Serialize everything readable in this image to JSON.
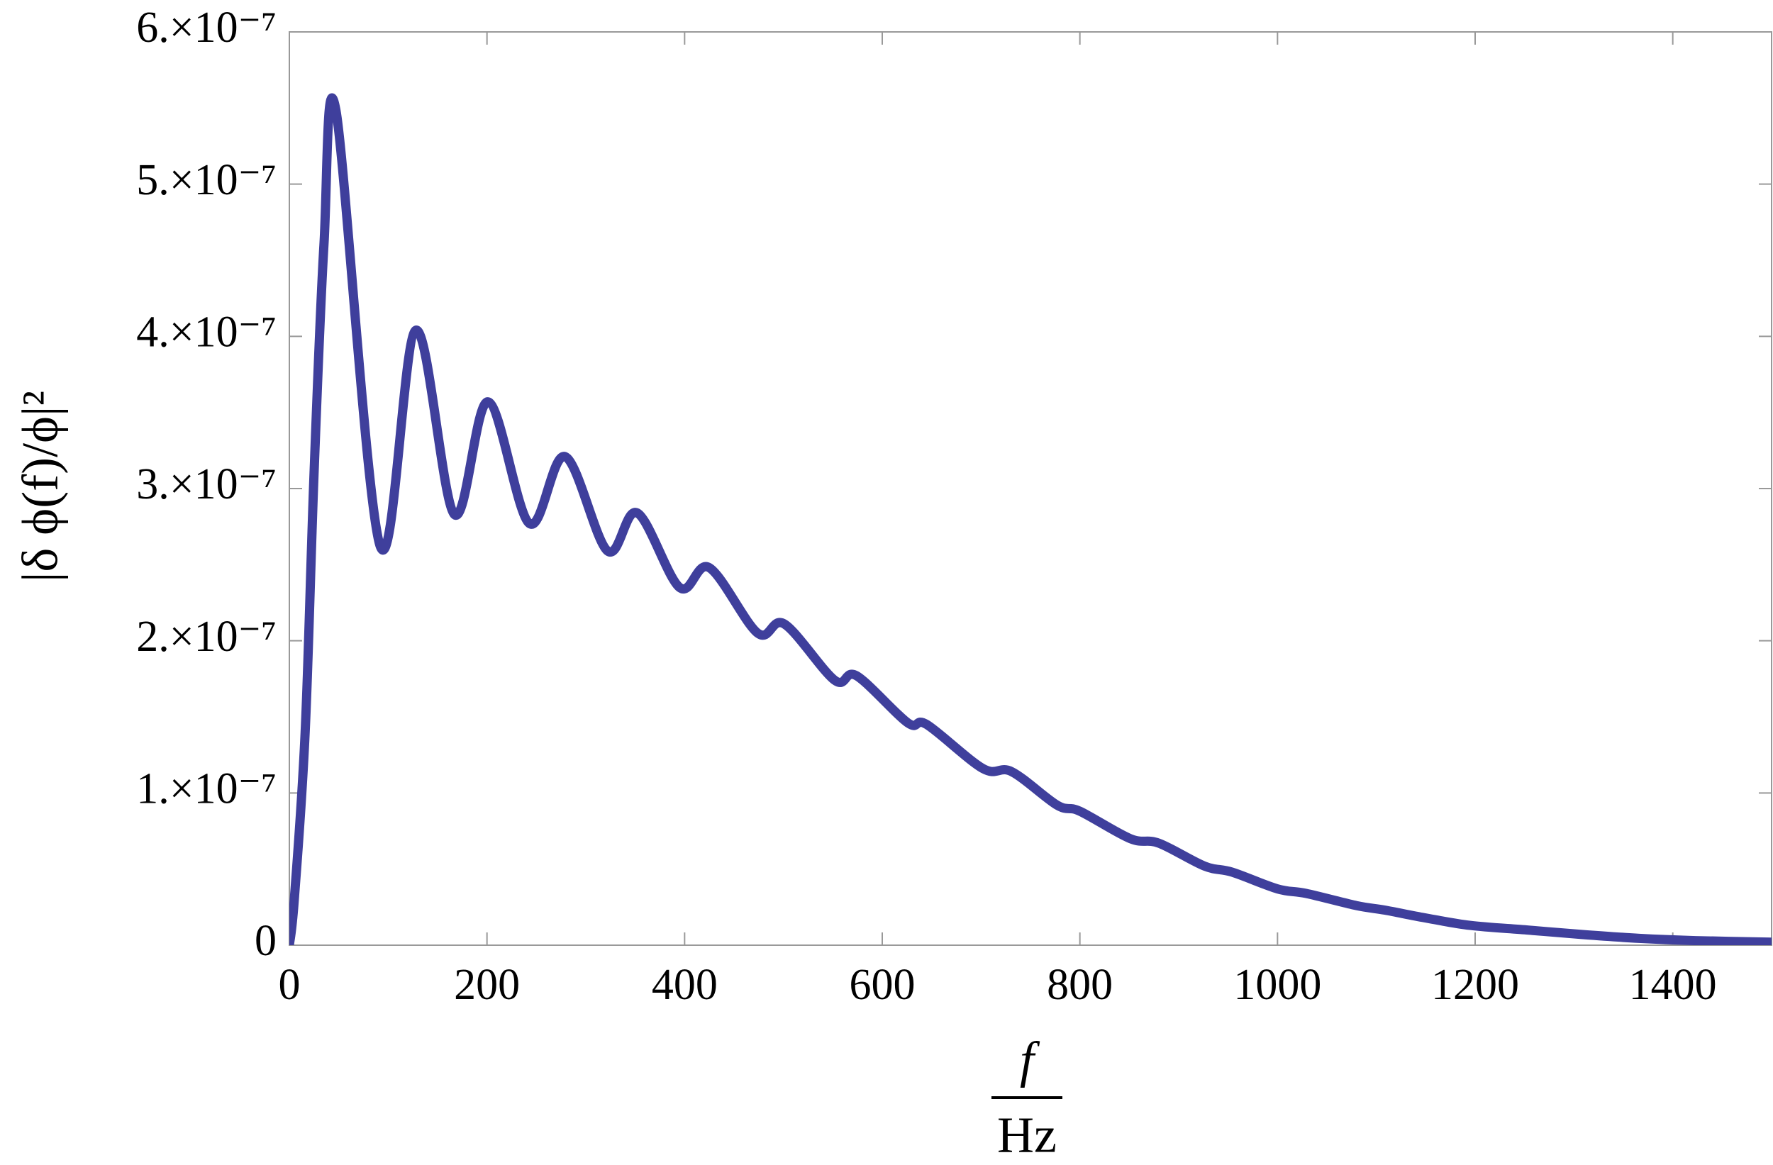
{
  "chart_data": {
    "type": "line",
    "ylabel": "|δ ϕ(f)/ϕ|²",
    "xlabel": {
      "numerator": "f",
      "denominator": "Hz"
    },
    "xlim": [
      0,
      1500
    ],
    "xticks": [
      0,
      200,
      400,
      600,
      800,
      1000,
      1200,
      1400
    ],
    "ylim": [
      0,
      6e-07
    ],
    "yticks": [
      0,
      {
        "value": 1e-07,
        "label": "1.×10⁻⁷"
      },
      {
        "value": 2e-07,
        "label": "2.×10⁻⁷"
      },
      {
        "value": 3e-07,
        "label": "3.×10⁻⁷"
      },
      {
        "value": 4e-07,
        "label": "4.×10⁻⁷"
      },
      {
        "value": 5e-07,
        "label": "5.×10⁻⁷"
      },
      {
        "value": 6e-07,
        "label": "6.×10⁻⁷"
      }
    ],
    "series": [
      {
        "color": "#3f3f9c",
        "x": [
          0,
          5,
          16,
          25,
          35,
          47,
          92,
          128,
          167,
          201,
          243,
          279,
          322,
          352,
          395,
          425,
          474,
          501,
          552,
          574,
          626,
          645,
          702,
          731,
          777,
          800,
          851,
          880,
          926,
          954,
          1000,
          1029,
          1080,
          1109,
          1149,
          1195,
          1252,
          1309,
          1366,
          1423,
          1500
        ],
        "values": [
          0,
          3e-08,
          1.4e-07,
          3.1e-07,
          4.6e-07,
          5.49e-07,
          2.62e-07,
          4.04e-07,
          2.83e-07,
          3.57e-07,
          2.77e-07,
          3.21e-07,
          2.59e-07,
          2.84e-07,
          2.35e-07,
          2.48e-07,
          2.05e-07,
          2.11e-07,
          1.74e-07,
          1.77e-07,
          1.46e-07,
          1.45e-07,
          1.16e-07,
          1.14e-07,
          9.2e-08,
          8.8e-08,
          7e-08,
          6.7e-08,
          5.2e-08,
          4.8e-08,
          3.7e-08,
          3.4e-08,
          2.6e-08,
          2.3e-08,
          1.8e-08,
          1.3e-08,
          1e-08,
          7e-09,
          4.5e-09,
          3e-09,
          2e-09
        ]
      }
    ]
  }
}
